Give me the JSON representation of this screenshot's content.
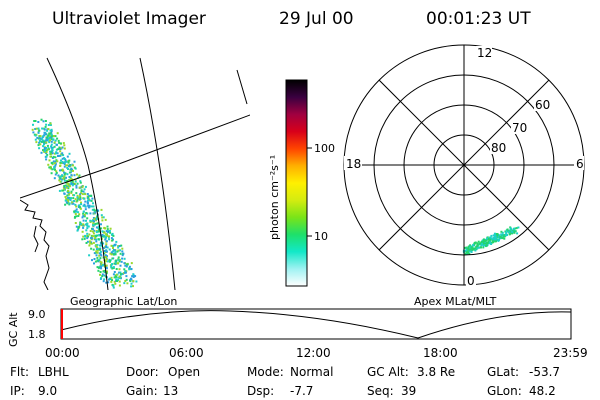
{
  "header": {
    "title": "Ultraviolet Imager",
    "date": "29 Jul 00",
    "time": "00:01:23 UT"
  },
  "colorbar": {
    "unit_label": "photon cm⁻²s⁻¹",
    "tick_labels": [
      "100",
      "10"
    ]
  },
  "polar_plot": {
    "mlt_labels": [
      "12",
      "18",
      "6",
      "0"
    ],
    "lat_labels": [
      "60",
      "70",
      "80"
    ]
  },
  "panel_labels": {
    "left": "Geographic Lat/Lon",
    "right": "Apex MLat/MLT"
  },
  "altitude_plot": {
    "ylabel": "GC Alt",
    "yticks": [
      "9.0",
      "1.8"
    ],
    "xticks": [
      "00:00",
      "06:00",
      "12:00",
      "18:00",
      "23:59"
    ]
  },
  "info": {
    "flt_label": "Flt:",
    "flt_value": "LBHL",
    "ip_label": "IP:",
    "ip_value": "9.0",
    "door_label": "Door:",
    "door_value": "Open",
    "gain_label": "Gain:",
    "gain_value": "13",
    "mode_label": "Mode:",
    "mode_value": "Normal",
    "dsp_label": "Dsp:",
    "dsp_value": "-7.7",
    "gcalt_label": "GC Alt:",
    "gcalt_value": "3.8 Re",
    "seq_label": "Seq:",
    "seq_value": "39",
    "glat_label": "GLat:",
    "glat_value": "-53.7",
    "glon_label": "GLon:",
    "glon_value": "48.2"
  },
  "colors": {
    "colorbar_stops": [
      "#ffffff",
      "#9ff2f2",
      "#12e8c8",
      "#1ee06a",
      "#7ae418",
      "#d4ec10",
      "#fff000",
      "#ffb000",
      "#ff4400",
      "#d8001a",
      "#a00040",
      "#3a0040",
      "#000000"
    ],
    "aurora": [
      "#1fd0c8",
      "#25d46a",
      "#2aa0e0",
      "#9bd82c"
    ],
    "marker": "#ff0000"
  }
}
